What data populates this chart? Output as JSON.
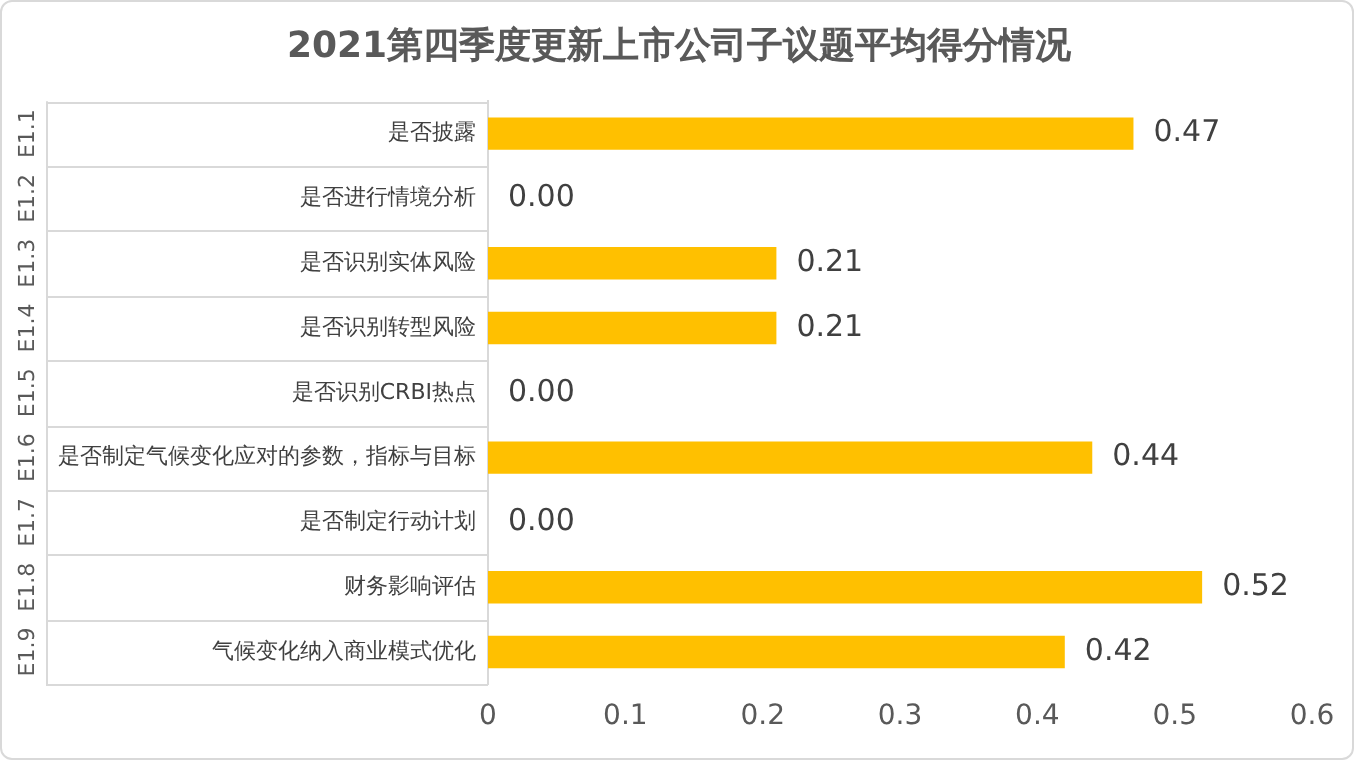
{
  "chart_data": {
    "type": "bar",
    "orientation": "horizontal",
    "title": "2021第四季度更新上市公司子议题平均得分情况",
    "categories": [
      "是否披露",
      "是否进行情境分析",
      "是否识别实体风险",
      "是否识别转型风险",
      "是否识别CRBI热点",
      "是否制定气候变化应对的参数，指标与目标",
      "是否制定行动计划",
      "财务影响评估",
      "气候变化纳入商业模式优化"
    ],
    "values": [
      0.47,
      0,
      0.21,
      0.21,
      0,
      0.44,
      0,
      0.52,
      0.42
    ],
    "value_labels": [
      "0.47",
      "0.00",
      "0.21",
      "0.21",
      "0.00",
      "0.44",
      "0.00",
      "0.52",
      "0.42"
    ],
    "color": "#ffc000",
    "xlim": [
      0,
      0.6
    ],
    "xticks": [
      0,
      0.1,
      0.2,
      0.3,
      0.4,
      0.5,
      0.6
    ],
    "grid": false,
    "legend": false,
    "annotations": [
      "E1.1",
      "E1.2",
      "E1.3",
      "E1.4",
      "E1.5",
      "E1.6",
      "E1.7",
      "E1.8",
      "E1.9"
    ]
  }
}
